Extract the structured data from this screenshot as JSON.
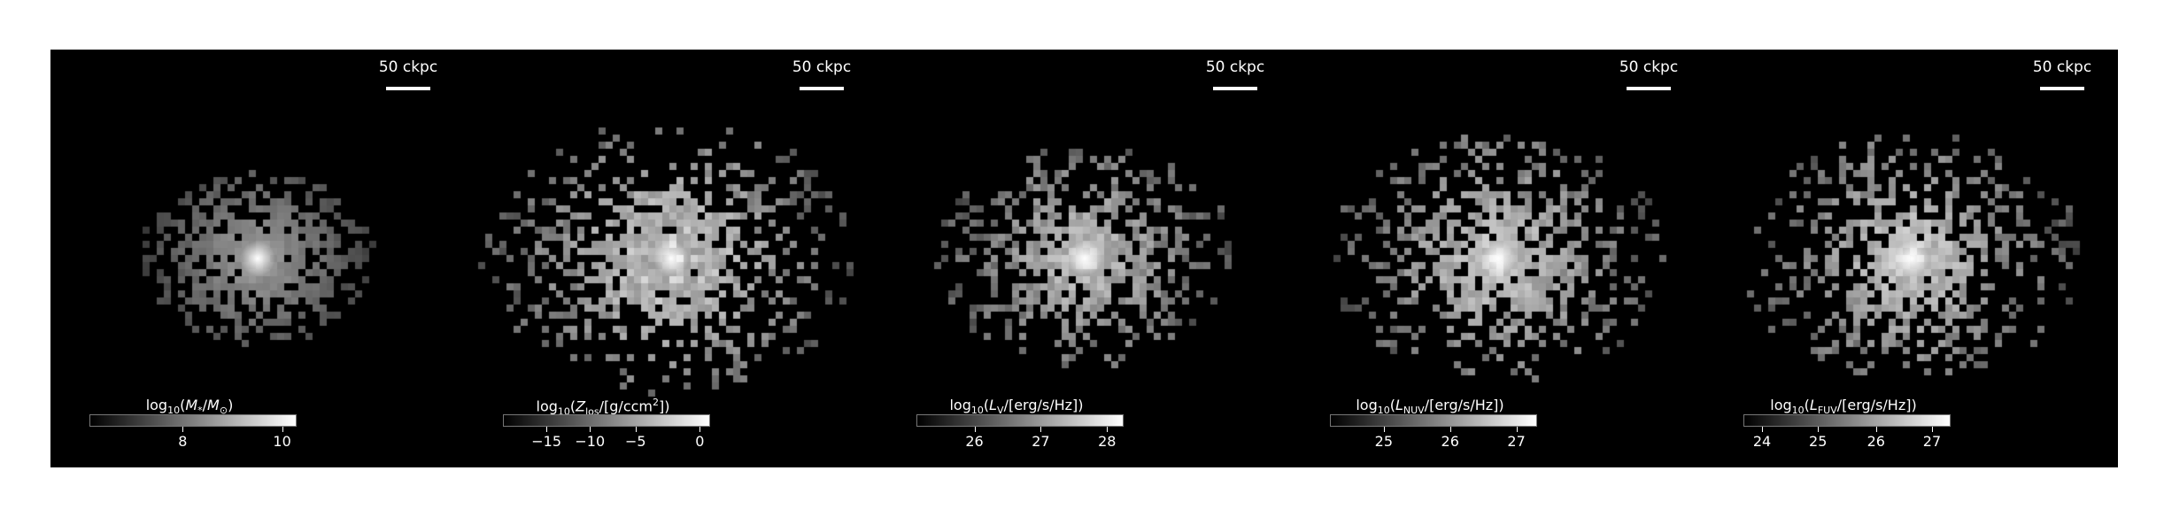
{
  "panels": [
    {
      "scale_label": "50 ckpc",
      "colorbar": {
        "quantity_html": "log<sub>10</sub>(<i>M</i><sub>*</sub>/<i>M</i><sub>⊙</sub>)",
        "ticks": [
          "8",
          "10"
        ],
        "tick_fracs": [
          0.45,
          0.93
        ]
      }
    },
    {
      "scale_label": "50 ckpc",
      "colorbar": {
        "quantity_html": "log<sub>10</sub>(<i>Z</i><sub>los</sub>/[g/ccm<sup>2</sup>])",
        "ticks": [
          "−15",
          "−10",
          "−5",
          "0"
        ],
        "tick_fracs": [
          0.21,
          0.42,
          0.64,
          0.95
        ]
      }
    },
    {
      "scale_label": "50 ckpc",
      "colorbar": {
        "quantity_html": "log<sub>10</sub>(<i>L</i><sub>V</sub>/[erg/s/Hz])",
        "ticks": [
          "26",
          "27",
          "28"
        ],
        "tick_fracs": [
          0.28,
          0.6,
          0.92
        ]
      }
    },
    {
      "scale_label": "50 ckpc",
      "colorbar": {
        "quantity_html": "log<sub>10</sub>(<i>L</i><sub>NUV</sub>/[erg/s/Hz])",
        "ticks": [
          "25",
          "26",
          "27"
        ],
        "tick_fracs": [
          0.26,
          0.58,
          0.9
        ]
      }
    },
    {
      "scale_label": "50 ckpc",
      "colorbar": {
        "quantity_html": "log<sub>10</sub>(<i>L</i><sub>FUV</sub>/[erg/s/Hz])",
        "ticks": [
          "24",
          "25",
          "26",
          "27"
        ],
        "tick_fracs": [
          0.09,
          0.36,
          0.64,
          0.91
        ]
      }
    }
  ]
}
